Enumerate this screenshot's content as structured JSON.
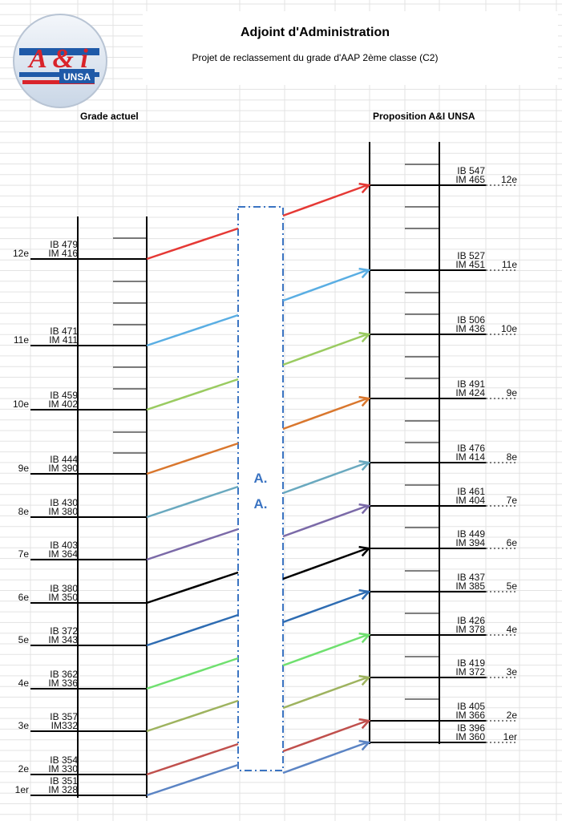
{
  "header": {
    "title": "Adjoint d'Administration",
    "subtitle": "Projet de reclassement du grade d'AAP 2ème classe (C2)"
  },
  "logo": {
    "main_text": "A & i",
    "sub_text": "UNSA"
  },
  "columns": {
    "left": "Grade actuel",
    "right": "Proposition A&I UNSA"
  },
  "center_box": {
    "line1": "A.",
    "line2": "A."
  },
  "colors": {
    "grid": "#e3e3e3",
    "box": "#3b74c2",
    "arrows": [
      "#e53935",
      "#5aaee3",
      "#9acb61",
      "#d9772e",
      "#6aa9bf",
      "#7b6aa8",
      "#000000",
      "#2e6cb2",
      "#6fe06f",
      "#9eb35f",
      "#c0504d",
      "#5b84c4"
    ]
  },
  "left_steps": [
    {
      "step": "12e",
      "ib": "IB 479",
      "im": "IM 416"
    },
    {
      "step": "11e",
      "ib": "IB 471",
      "im": "IM 411"
    },
    {
      "step": "10e",
      "ib": "IB 459",
      "im": "IM 402"
    },
    {
      "step": "9e",
      "ib": "IB 444",
      "im": "IM 390"
    },
    {
      "step": "8e",
      "ib": "IB 430",
      "im": "IM 380"
    },
    {
      "step": "7e",
      "ib": "IB 403",
      "im": "IM 364"
    },
    {
      "step": "6e",
      "ib": "IB 380",
      "im": "IM 350"
    },
    {
      "step": "5e",
      "ib": "IB 372",
      "im": "IM 343"
    },
    {
      "step": "4e",
      "ib": "IB 362",
      "im": "IM 336"
    },
    {
      "step": "3e",
      "ib": "IB 357",
      "im": "IM332"
    },
    {
      "step": "2e",
      "ib": "IB 354",
      "im": "IM 330"
    },
    {
      "step": "1er",
      "ib": "IB 351",
      "im": "IM 328"
    }
  ],
  "right_steps": [
    {
      "step": "12e",
      "ib": "IB 547",
      "im": "IM 465"
    },
    {
      "step": "11e",
      "ib": "IB 527",
      "im": "IM 451"
    },
    {
      "step": "10e",
      "ib": "IB 506",
      "im": "IM 436"
    },
    {
      "step": "9e",
      "ib": "IB 491",
      "im": "IM 424"
    },
    {
      "step": "8e",
      "ib": "IB 476",
      "im": "IM 414"
    },
    {
      "step": "7e",
      "ib": "IB 461",
      "im": "IM 404"
    },
    {
      "step": "6e",
      "ib": "IB 449",
      "im": "IM 394"
    },
    {
      "step": "5e",
      "ib": "IB 437",
      "im": "IM 385"
    },
    {
      "step": "4e",
      "ib": "IB 426",
      "im": "IM 378"
    },
    {
      "step": "3e",
      "ib": "IB 419",
      "im": "IM 372"
    },
    {
      "step": "2e",
      "ib": "IB 405",
      "im": "IM 366"
    },
    {
      "step": "1er",
      "ib": "IB 396",
      "im": "IM 360"
    }
  ]
}
